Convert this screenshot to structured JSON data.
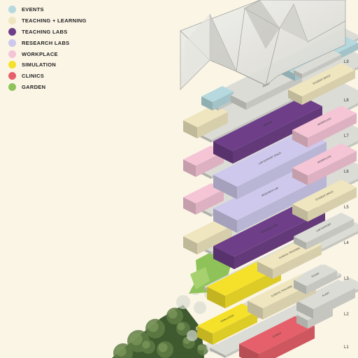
{
  "legend": [
    {
      "label": "EVENTS",
      "color": "#b5d9df"
    },
    {
      "label": "TEACHING + LEARNING",
      "color": "#efe6bf"
    },
    {
      "label": "TEACHING LABS",
      "color": "#6e3f88"
    },
    {
      "label": "RESEARCH LABS",
      "color": "#cec9ec"
    },
    {
      "label": "WORKPLACE",
      "color": "#f5c5d6"
    },
    {
      "label": "SIMULATION",
      "color": "#f5e12a"
    },
    {
      "label": "CLINICS",
      "color": "#e5606a"
    },
    {
      "label": "GARDEN",
      "color": "#8fc35a"
    }
  ],
  "levels": [
    "L9",
    "L8",
    "L7",
    "L6",
    "L5",
    "L4",
    "L3",
    "L2",
    "L1"
  ],
  "rooms": [
    "PLANT",
    "STUDENT SPACE",
    "SHEPPEY",
    "TEACHING LABS",
    "RESEARCH LAB",
    "LAB SUPPORT SPACE",
    "WORKPLACE",
    "CLINICAL TEACHING",
    "SIMULATION",
    "CLINICS",
    "PLANT",
    "FOYER",
    "LAB SUPPORT",
    "LIBRARY"
  ]
}
